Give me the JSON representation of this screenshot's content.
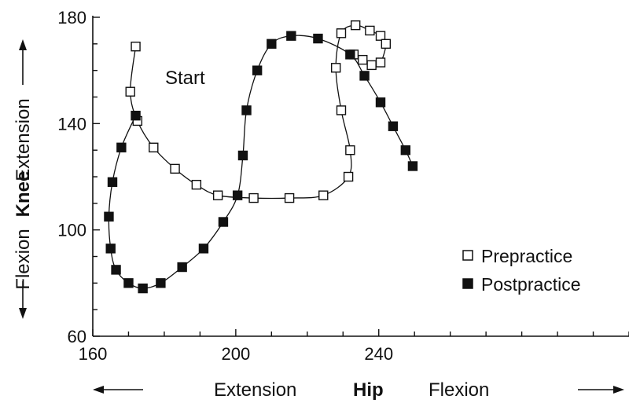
{
  "chart_data": {
    "type": "line",
    "xlim": [
      160,
      310
    ],
    "ylim": [
      60,
      180
    ],
    "x_ticks": [
      "160",
      "200",
      "240"
    ],
    "y_ticks": [
      "60",
      "100",
      "140",
      "180"
    ],
    "x_axis": {
      "label": "Hip",
      "left_label": "Extension",
      "right_label": "Flexion"
    },
    "y_axis": {
      "label": "Knee",
      "top_label": "Extension",
      "bottom_label": "Flexion"
    },
    "annotation": "Start",
    "legend_position": "bottom-right",
    "series": [
      {
        "name": "Prepractice",
        "marker": "hollow-square",
        "points": [
          [
            172,
            169
          ],
          [
            170.5,
            152
          ],
          [
            172.5,
            141
          ],
          [
            177,
            131
          ],
          [
            183,
            123
          ],
          [
            189,
            117
          ],
          [
            195,
            113
          ],
          [
            205,
            112
          ],
          [
            215,
            112
          ],
          [
            224.5,
            113
          ],
          [
            231.5,
            120
          ],
          [
            232,
            130
          ],
          [
            229.5,
            145
          ],
          [
            228,
            161
          ],
          [
            229.5,
            174
          ],
          [
            233.5,
            177
          ],
          [
            237.5,
            175
          ],
          [
            240.5,
            173
          ],
          [
            242,
            170
          ],
          [
            240.5,
            163
          ],
          [
            238,
            162
          ],
          [
            235.5,
            164
          ],
          [
            233,
            166
          ]
        ]
      },
      {
        "name": "Postpractice",
        "marker": "filled-square",
        "points": [
          [
            172,
            143
          ],
          [
            168,
            131
          ],
          [
            165.5,
            118
          ],
          [
            164.5,
            105
          ],
          [
            165,
            93
          ],
          [
            166.5,
            85
          ],
          [
            170,
            80
          ],
          [
            174,
            78
          ],
          [
            179,
            80
          ],
          [
            185,
            86
          ],
          [
            191,
            93
          ],
          [
            196.5,
            103
          ],
          [
            200.5,
            113
          ],
          [
            202,
            128
          ],
          [
            203,
            145
          ],
          [
            206,
            160
          ],
          [
            210,
            170
          ],
          [
            215.5,
            173
          ],
          [
            223,
            172
          ],
          [
            232,
            166
          ],
          [
            236,
            158
          ],
          [
            240.5,
            148
          ],
          [
            244,
            139
          ],
          [
            247.5,
            130
          ],
          [
            249.5,
            124
          ]
        ]
      }
    ]
  }
}
